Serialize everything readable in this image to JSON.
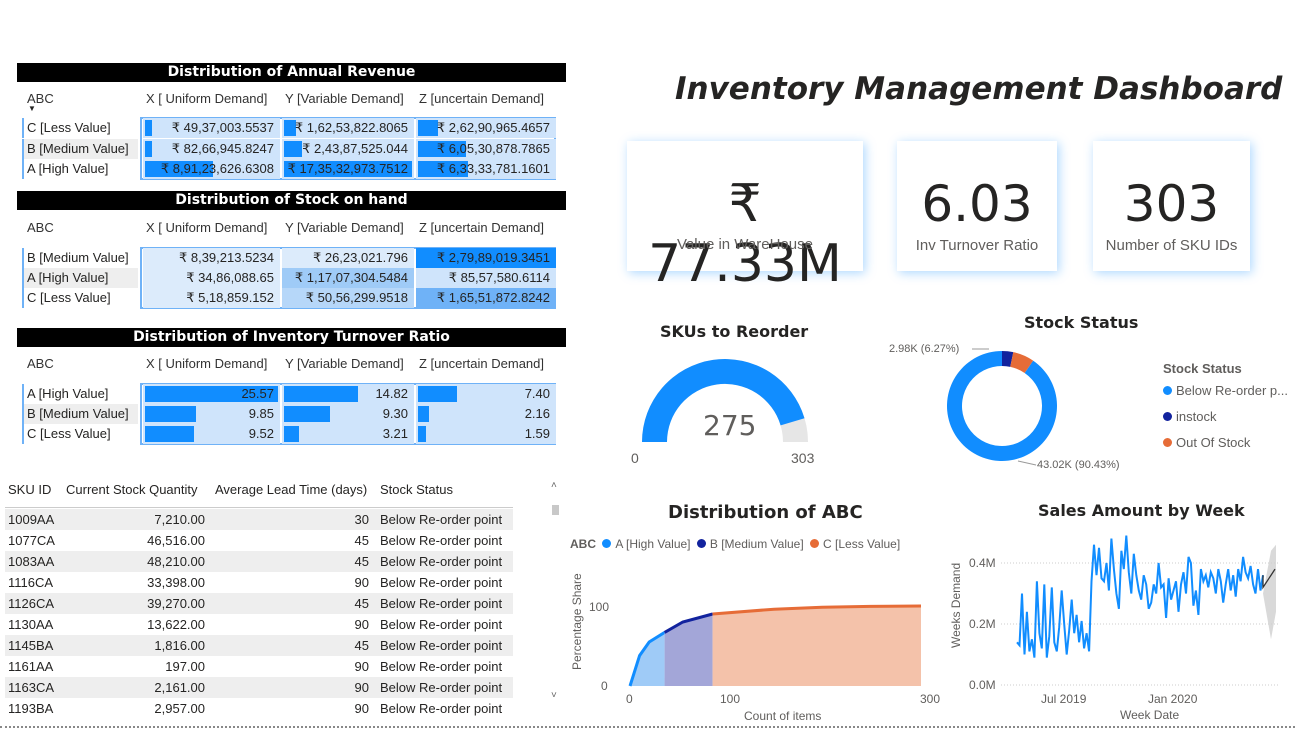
{
  "dashboard_title": "Inventory Management Dashboard",
  "columns": [
    "X [ Uniform Demand]",
    "Y [Variable Demand]",
    "Z [uncertain Demand]"
  ],
  "abc_header": "ABC",
  "matrix_revenue": {
    "title": "Distribution of Annual Revenue",
    "rows": [
      {
        "label": "C [Less Value]",
        "cells": [
          "₹ 49,37,003.5537",
          "₹ 1,62,53,822.8065",
          "₹ 2,62,90,965.4657"
        ],
        "fractions": [
          0.05,
          0.09,
          0.15
        ]
      },
      {
        "label": "B [Medium Value]",
        "cells": [
          "₹ 82,66,945.8247",
          "₹ 2,43,87,525.044",
          "₹ 6,05,30,878.7865"
        ],
        "fractions": [
          0.05,
          0.14,
          0.35
        ]
      },
      {
        "label": "A [High Value]",
        "cells": [
          "₹ 8,91,23,626.6308",
          "₹ 17,35,32,973.7512",
          "₹ 6,33,33,781.1601"
        ],
        "fractions": [
          0.51,
          1.0,
          0.37
        ]
      }
    ]
  },
  "matrix_stock": {
    "title": "Distribution of Stock on hand",
    "rows": [
      {
        "label": "B [Medium Value]",
        "cells": [
          "₹ 8,39,213.5234",
          "₹ 26,23,021.796",
          "₹ 2,79,89,019.3451"
        ]
      },
      {
        "label": "A [High Value]",
        "cells": [
          "₹ 34,86,088.65",
          "₹ 1,17,07,304.5484",
          "₹ 85,57,580.6114"
        ]
      },
      {
        "label": "C [Less Value]",
        "cells": [
          "₹ 5,18,859.152",
          "₹ 50,56,299.9518",
          "₹ 1,65,51,872.8242"
        ]
      }
    ],
    "shades": [
      [
        "#dcebfb",
        "#dcebfb",
        "#118dff"
      ],
      [
        "#dcebfb",
        "#9fcbf7",
        "#cfe4fb"
      ],
      [
        "#dcebfb",
        "#b6d7f9",
        "#6fb2f7"
      ]
    ]
  },
  "matrix_turnover": {
    "title": "Distribution of Inventory Turnover Ratio",
    "rows": [
      {
        "label": "A [High Value]",
        "cells": [
          "25.57",
          "14.82",
          "7.40"
        ],
        "fractions": [
          1.0,
          0.58,
          0.29
        ]
      },
      {
        "label": "B [Medium Value]",
        "cells": [
          "9.85",
          "9.30",
          "2.16"
        ],
        "fractions": [
          0.38,
          0.36,
          0.08
        ]
      },
      {
        "label": "C [Less Value]",
        "cells": [
          "9.52",
          "3.21",
          "1.59"
        ],
        "fractions": [
          0.37,
          0.12,
          0.06
        ]
      }
    ]
  },
  "kpis": [
    {
      "value": "₹ 77.33M",
      "label": "Value in WareHouse"
    },
    {
      "value": "6.03",
      "label": "Inv Turnover Ratio"
    },
    {
      "value": "303",
      "label": "Number of SKU IDs"
    }
  ],
  "gauge": {
    "title": "SKUs to Reorder",
    "value": 275,
    "value_label": "275",
    "min_label": "0",
    "max_label": "303",
    "min": 0,
    "max": 303,
    "color": "#118dff"
  },
  "stock_status": {
    "title": "Stock Status",
    "legend_title": "Stock Status",
    "items": [
      {
        "name": "Below Re-order p...",
        "color": "#118dff",
        "share": 90.43
      },
      {
        "name": "instock",
        "color": "#12239e",
        "share": 3.3
      },
      {
        "name": "Out Of Stock",
        "color": "#e66c37",
        "share": 6.27
      }
    ],
    "label_small": "2.98K (6.27%)",
    "label_big": "43.02K (90.43%)"
  },
  "sku_table": {
    "headers": [
      "SKU ID",
      "Current Stock Quantity",
      "Average Lead Time (days)",
      "Stock Status"
    ],
    "rows": [
      [
        "1009AA",
        "7,210.00",
        "30",
        "Below Re-order point"
      ],
      [
        "1077CA",
        "46,516.00",
        "45",
        "Below Re-order point"
      ],
      [
        "1083AA",
        "48,210.00",
        "45",
        "Below Re-order point"
      ],
      [
        "1116CA",
        "33,398.00",
        "90",
        "Below Re-order point"
      ],
      [
        "1126CA",
        "39,270.00",
        "45",
        "Below Re-order point"
      ],
      [
        "1130AA",
        "13,622.00",
        "90",
        "Below Re-order point"
      ],
      [
        "1145BA",
        "1,816.00",
        "45",
        "Below Re-order point"
      ],
      [
        "1161AA",
        "197.00",
        "90",
        "Below Re-order point"
      ],
      [
        "1163CA",
        "2,161.00",
        "90",
        "Below Re-order point"
      ],
      [
        "1193BA",
        "2,957.00",
        "90",
        "Below Re-order point"
      ]
    ]
  },
  "abc_chart": {
    "title": "Distribution of ABC",
    "legend_label": "ABC",
    "legend": [
      {
        "name": "A [High Value]",
        "color": "#118dff"
      },
      {
        "name": "B [Medium Value]",
        "color": "#12239e"
      },
      {
        "name": "C [Less Value]",
        "color": "#e66c37"
      }
    ],
    "xlabel": "Count of items",
    "ylabel": "Percentage Share",
    "y_ticks": [
      "100",
      "0"
    ],
    "x_ticks": [
      "0",
      "100",
      "300"
    ]
  },
  "sales_chart": {
    "title": "Sales Amount by Week",
    "xlabel": "Week Date",
    "ylabel": "Weeks Demand",
    "y_ticks": [
      "0.4M",
      "0.2M",
      "0.0M"
    ],
    "x_ticks": [
      "Jul 2019",
      "Jan 2020"
    ]
  },
  "chart_data": [
    {
      "type": "area",
      "title": "Distribution of ABC",
      "xlabel": "Count of items",
      "ylabel": "Percentage Share",
      "xlim": [
        0,
        303
      ],
      "ylim": [
        0,
        100
      ],
      "series": [
        {
          "name": "A [High Value]",
          "x": [
            0,
            10,
            20,
            36
          ],
          "y": [
            0,
            38,
            55,
            67
          ]
        },
        {
          "name": "B [Medium Value]",
          "x": [
            36,
            55,
            86
          ],
          "y": [
            67,
            80,
            90
          ]
        },
        {
          "name": "C [Less Value]",
          "x": [
            86,
            150,
            200,
            250,
            303
          ],
          "y": [
            90,
            96,
            98.5,
            99.5,
            100
          ]
        }
      ]
    },
    {
      "type": "line",
      "title": "Sales Amount by Week",
      "xlabel": "Week Date",
      "ylabel": "Weeks Demand",
      "ylim": [
        0,
        0.47
      ],
      "unit": "M",
      "series": [
        {
          "name": "",
          "y": [
            0.14,
            0.13,
            0.3,
            0.1,
            0.24,
            0.11,
            0.15,
            0.09,
            0.34,
            0.17,
            0.12,
            0.33,
            0.09,
            0.16,
            0.32,
            0.14,
            0.11,
            0.19,
            0.31,
            0.2,
            0.1,
            0.18,
            0.28,
            0.17,
            0.23,
            0.14,
            0.21,
            0.12,
            0.17,
            0.11,
            0.34,
            0.46,
            0.36,
            0.45,
            0.35,
            0.34,
            0.4,
            0.31,
            0.48,
            0.38,
            0.3,
            0.25,
            0.44,
            0.38,
            0.49,
            0.37,
            0.3,
            0.43,
            0.36,
            0.31,
            0.28,
            0.36,
            0.33,
            0.25,
            0.27,
            0.33,
            0.3,
            0.4,
            0.32,
            0.33,
            0.22,
            0.35,
            0.28,
            0.31,
            0.34,
            0.24,
            0.33,
            0.37,
            0.3,
            0.42,
            0.4,
            0.26,
            0.31,
            0.23,
            0.38,
            0.34,
            0.36,
            0.32,
            0.37,
            0.35,
            0.3,
            0.38,
            0.34,
            0.27,
            0.33,
            0.38,
            0.31,
            0.36,
            0.29,
            0.38,
            0.34,
            0.42,
            0.37,
            0.35,
            0.39,
            0.33,
            0.3,
            0.38,
            0.31,
            0.36
          ]
        }
      ],
      "forecast": [
        0.32,
        0.35,
        0.38
      ]
    }
  ]
}
